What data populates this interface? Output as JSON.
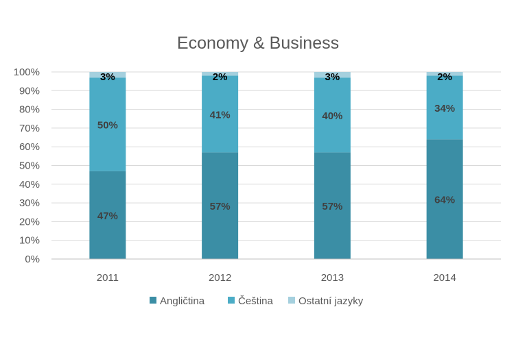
{
  "chart_data": {
    "type": "bar",
    "stacked": true,
    "title": "Economy & Business",
    "xlabel": "",
    "ylabel": "",
    "categories": [
      "2011",
      "2012",
      "2013",
      "2014"
    ],
    "series": [
      {
        "name": "Angličtina",
        "values": [
          47,
          57,
          57,
          64
        ],
        "labels": [
          "47%",
          "57%",
          "57%",
          "64%"
        ],
        "color": "#3b8ea5",
        "label_color": "#404040"
      },
      {
        "name": "Čeština",
        "values": [
          50,
          41,
          40,
          34
        ],
        "labels": [
          "50%",
          "41%",
          "40%",
          "34%"
        ],
        "color": "#4bacc6",
        "label_color": "#404040"
      },
      {
        "name": "Ostatní jazyky",
        "values": [
          3,
          2,
          3,
          2
        ],
        "labels": [
          "3%",
          "2%",
          "3%",
          "2%"
        ],
        "color": "#a5d0de",
        "label_color": "#000000"
      }
    ],
    "ylim": [
      0,
      100
    ],
    "y_ticks": [
      "0%",
      "10%",
      "20%",
      "30%",
      "40%",
      "50%",
      "60%",
      "70%",
      "80%",
      "90%",
      "100%"
    ],
    "grid": true,
    "legend_position": "bottom",
    "colors": {
      "grid": "#d9d9d9",
      "axis": "#bfbfbf",
      "text": "#595959"
    }
  }
}
